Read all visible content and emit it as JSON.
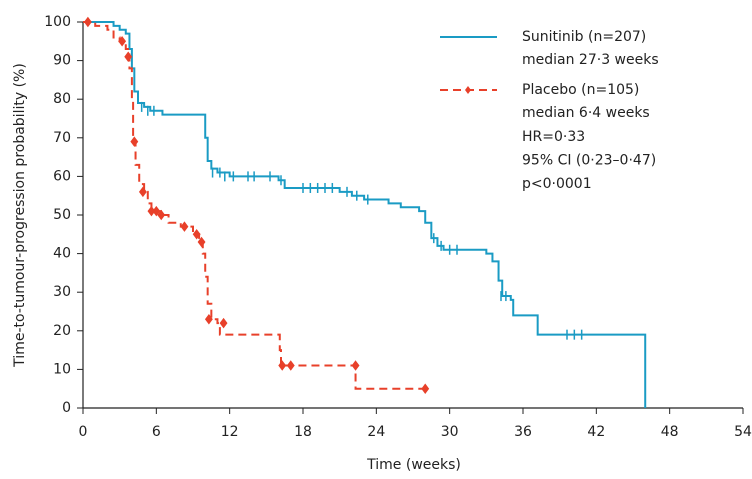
{
  "chart_data": {
    "type": "step",
    "x_label": "Time (weeks)",
    "y_label": "Time-to-tumour-progression probability (%)",
    "xlim": [
      0,
      54
    ],
    "xticks": [
      0,
      6,
      12,
      18,
      24,
      30,
      36,
      42,
      48,
      54
    ],
    "ylim": [
      0,
      100
    ],
    "yticks": [
      0,
      10,
      20,
      30,
      40,
      50,
      60,
      70,
      80,
      90,
      100
    ],
    "legend": "upper right",
    "annotations": [
      "HR=0·33",
      "95% CI (0·23–0·47)",
      "p<0·0001"
    ],
    "series": [
      {
        "name": "Sunitinib (n=207)",
        "subtitle": "median 27·3 weeks",
        "color": "#1a9bc4",
        "dash": false,
        "x": [
          0,
          2,
          2.5,
          3,
          3.5,
          3.8,
          4,
          4.2,
          4.5,
          5,
          5.5,
          6.5,
          9.5,
          10,
          10.2,
          10.5,
          11,
          12,
          16,
          16.5,
          21,
          22,
          23,
          25,
          26,
          27.5,
          28,
          28.5,
          29,
          29.5,
          33,
          33.5,
          34,
          34.3,
          35,
          35.2,
          37,
          37.2,
          46
        ],
        "values": [
          100,
          100,
          99,
          98,
          97,
          93,
          88,
          82,
          79,
          78,
          77,
          76,
          76,
          70,
          64,
          62,
          61,
          60,
          59,
          57,
          56,
          55,
          54,
          53,
          52,
          51,
          48,
          44,
          42,
          41,
          40,
          38,
          33,
          29,
          28,
          24,
          24,
          19,
          0
        ],
        "censored_x": [
          4.8,
          5.3,
          5.8,
          10.6,
          11.2,
          11.6,
          12.3,
          13.5,
          14,
          15.3,
          16.2,
          18,
          18.6,
          19.2,
          19.8,
          20.4,
          21.6,
          22.4,
          23.3,
          28.7,
          29.3,
          30,
          30.6,
          34.2,
          34.6,
          39.6,
          40.2,
          40.8
        ],
        "censored_values": [
          78,
          77,
          77,
          61,
          61,
          60,
          60,
          60,
          60,
          60,
          59,
          57,
          57,
          57,
          57,
          57,
          56,
          55,
          54,
          44,
          42,
          41,
          41,
          29,
          29,
          19,
          19,
          19
        ]
      },
      {
        "name": "Placebo (n=105)",
        "subtitle": "median 6·4 weeks",
        "color": "#e8402a",
        "dash": true,
        "x": [
          0,
          1,
          2,
          2.5,
          3,
          3.5,
          3.8,
          4,
          4.1,
          4.3,
          4.6,
          5,
          5.3,
          5.6,
          6.5,
          7,
          8,
          9,
          9.5,
          9.8,
          10,
          10.2,
          10.5,
          11,
          11.2,
          16,
          16.1,
          16.2,
          22.3,
          28
        ],
        "values": [
          100,
          99,
          98,
          96,
          95,
          93,
          88,
          80,
          69,
          63,
          58,
          56,
          53,
          51,
          50,
          48,
          47,
          45,
          43,
          40,
          34,
          27,
          23,
          22,
          19,
          19,
          15,
          11,
          5,
          5
        ],
        "censored_x": [
          0.4,
          3.2,
          3.7,
          4.2,
          4.9,
          5.6,
          6,
          6.4,
          8.3,
          9.3,
          9.7,
          10.3,
          11.5,
          16.3,
          17,
          22.3,
          28
        ],
        "censored_values": [
          100,
          95,
          91,
          69,
          56,
          51,
          51,
          50,
          47,
          45,
          43,
          23,
          22,
          11,
          11,
          11,
          5
        ]
      }
    ]
  }
}
